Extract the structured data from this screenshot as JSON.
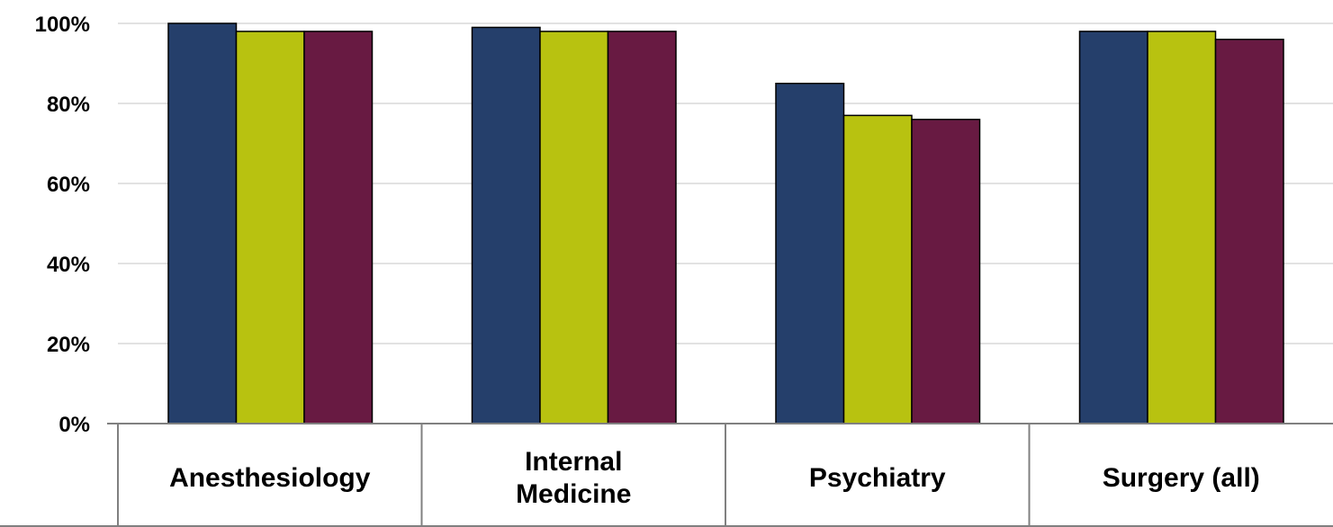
{
  "chart_data": {
    "type": "bar",
    "categories": [
      "Anesthesiology",
      "Internal Medicine",
      "Psychiatry",
      "Surgery (all)"
    ],
    "category_lines": [
      [
        "Anesthesiology"
      ],
      [
        "Internal",
        "Medicine"
      ],
      [
        "Psychiatry"
      ],
      [
        "Surgery (all)"
      ]
    ],
    "series": [
      {
        "values": [
          100,
          99,
          85,
          98
        ],
        "color": "#253f6b"
      },
      {
        "values": [
          98,
          98,
          77,
          98
        ],
        "color": "#b8c210"
      },
      {
        "values": [
          98,
          98,
          76,
          96
        ],
        "color": "#681a42"
      }
    ],
    "y_ticks": [
      "0%",
      "20%",
      "40%",
      "60%",
      "80%",
      "100%"
    ],
    "ylim": [
      0,
      100
    ],
    "grid": true,
    "legend": "none"
  }
}
